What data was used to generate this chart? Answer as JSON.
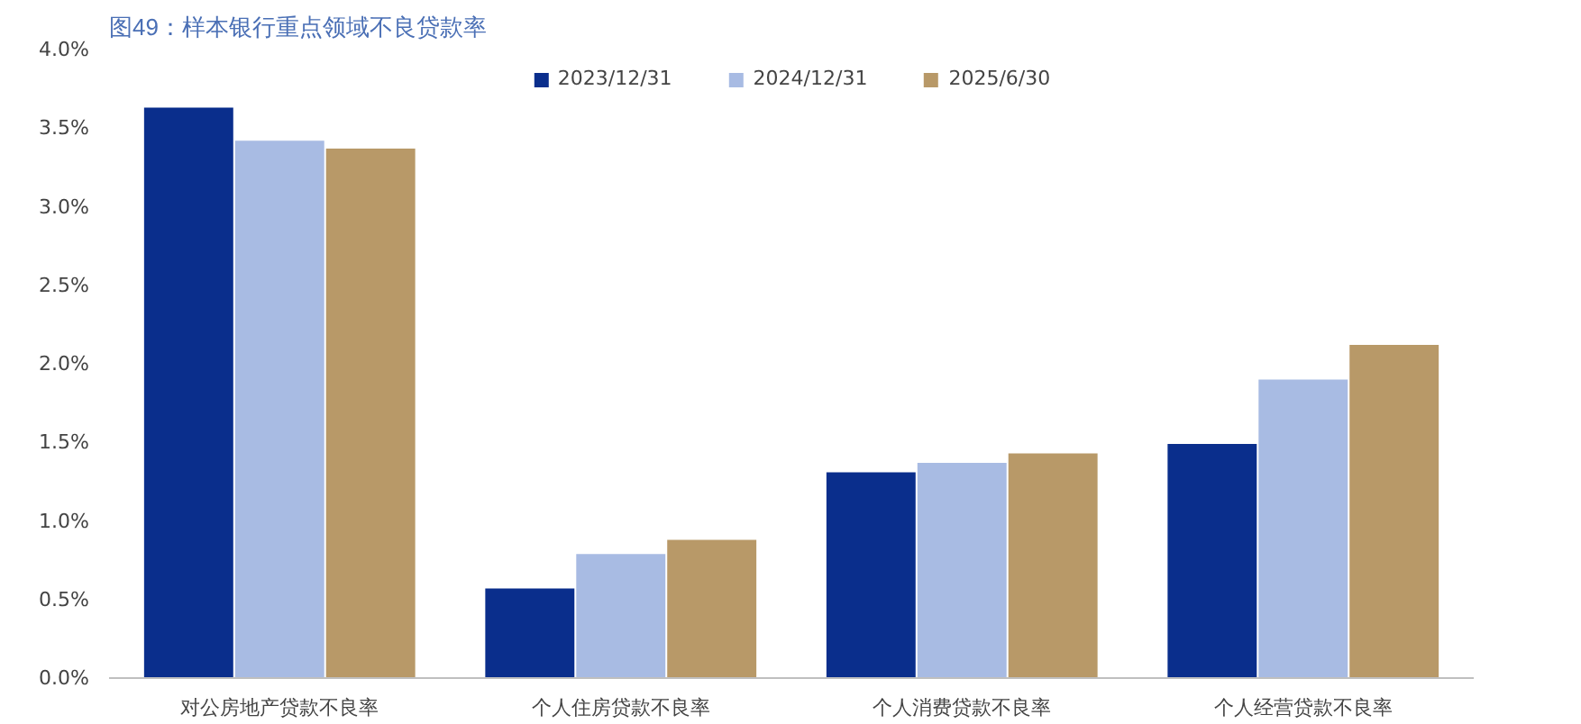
{
  "chart_data": {
    "type": "bar",
    "title": "图49：样本银行重点领域不良贷款率",
    "categories": [
      "对公房地产贷款不良率",
      "个人住房贷款不良率",
      "个人消费贷款不良率",
      "个人经营贷款不良率"
    ],
    "series": [
      {
        "name": "2023/12/31",
        "color": "#0a2e8c",
        "values": [
          3.63,
          0.57,
          1.31,
          1.49
        ]
      },
      {
        "name": "2024/12/31",
        "color": "#a8bbe3",
        "values": [
          3.42,
          0.79,
          1.37,
          1.9
        ]
      },
      {
        "name": "2025/6/30",
        "color": "#b89968",
        "values": [
          3.37,
          0.88,
          1.43,
          2.12
        ]
      }
    ],
    "ylim": [
      0,
      4.0
    ],
    "yticks": [
      {
        "value": 0,
        "label": "0.0%"
      },
      {
        "value": 0.5,
        "label": "0.5%"
      },
      {
        "value": 1.0,
        "label": "1.0%"
      },
      {
        "value": 1.5,
        "label": "1.5%"
      },
      {
        "value": 2.0,
        "label": "2.0%"
      },
      {
        "value": 2.5,
        "label": "2.5%"
      },
      {
        "value": 3.0,
        "label": "3.0%"
      },
      {
        "value": 3.5,
        "label": "3.5%"
      },
      {
        "value": 4.0,
        "label": "4.0%"
      }
    ],
    "grid": false,
    "legend": "top"
  }
}
